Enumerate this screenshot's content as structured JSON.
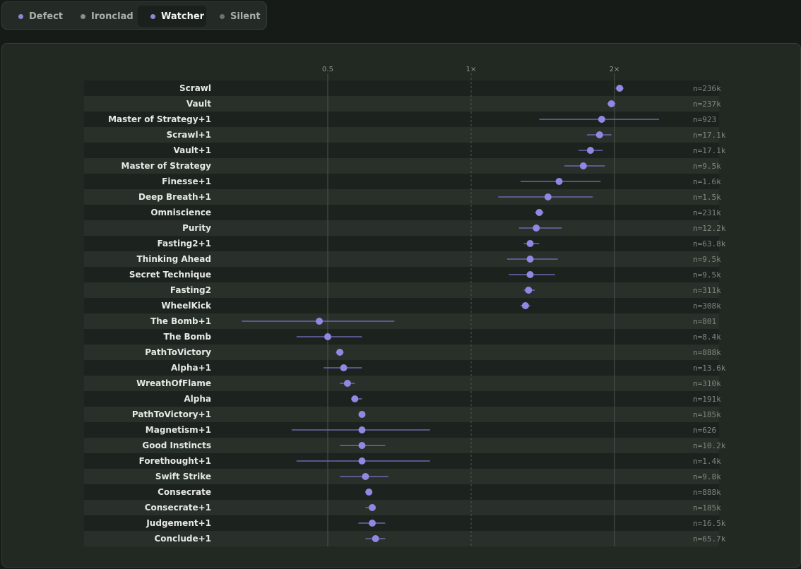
{
  "tabs": [
    {
      "label": "Defect",
      "color": "#8b86d6",
      "active": false
    },
    {
      "label": "Ironclad",
      "color": "#8a8f89",
      "active": false
    },
    {
      "label": "Watcher",
      "color": "#8b86d6",
      "active": true
    },
    {
      "label": "Silent",
      "color": "#6e736d",
      "active": false
    }
  ],
  "chart_data": {
    "type": "scatter",
    "x_scale": "log",
    "x_ticks": [
      {
        "value": 0.5,
        "label": "0.5"
      },
      {
        "value": 1,
        "label": "1×"
      },
      {
        "value": 2,
        "label": "2×"
      }
    ],
    "xlim": [
      0.25,
      3.7
    ],
    "point_color": "#9088e3",
    "rows": [
      {
        "name": "Scrawl",
        "value": 2.05,
        "low": 2.01,
        "high": 2.09,
        "n": "n=236k"
      },
      {
        "name": "Vault",
        "value": 1.97,
        "low": 1.93,
        "high": 2.01,
        "n": "n=237k"
      },
      {
        "name": "Master of Strategy+1",
        "value": 1.88,
        "low": 1.39,
        "high": 2.48,
        "n": "n=923"
      },
      {
        "name": "Scrawl+1",
        "value": 1.86,
        "low": 1.75,
        "high": 1.97,
        "n": "n=17.1k"
      },
      {
        "name": "Vault+1",
        "value": 1.78,
        "low": 1.68,
        "high": 1.89,
        "n": "n=17.1k"
      },
      {
        "name": "Master of Strategy",
        "value": 1.72,
        "low": 1.57,
        "high": 1.91,
        "n": "n=9.5k"
      },
      {
        "name": "Finesse+1",
        "value": 1.53,
        "low": 1.27,
        "high": 1.87,
        "n": "n=1.6k"
      },
      {
        "name": "Deep Breath+1",
        "value": 1.45,
        "low": 1.14,
        "high": 1.8,
        "n": "n=1.5k"
      },
      {
        "name": "Omniscience",
        "value": 1.39,
        "low": 1.36,
        "high": 1.42,
        "n": "n=231k"
      },
      {
        "name": "Purity",
        "value": 1.37,
        "low": 1.26,
        "high": 1.55,
        "n": "n=12.2k"
      },
      {
        "name": "Fasting2+1",
        "value": 1.33,
        "low": 1.29,
        "high": 1.39,
        "n": "n=63.8k"
      },
      {
        "name": "Thinking Ahead",
        "value": 1.33,
        "low": 1.19,
        "high": 1.52,
        "n": "n=9.5k"
      },
      {
        "name": "Secret Technique",
        "value": 1.33,
        "low": 1.2,
        "high": 1.5,
        "n": "n=9.5k"
      },
      {
        "name": "Fasting2",
        "value": 1.32,
        "low": 1.29,
        "high": 1.36,
        "n": "n=311k"
      },
      {
        "name": "WheelKick",
        "value": 1.3,
        "low": 1.27,
        "high": 1.33,
        "n": "n=308k"
      },
      {
        "name": "The Bomb+1",
        "value": 0.48,
        "low": 0.33,
        "high": 0.69,
        "n": "n=801"
      },
      {
        "name": "The Bomb",
        "value": 0.5,
        "low": 0.43,
        "high": 0.59,
        "n": "n=8.4k"
      },
      {
        "name": "PathToVictory",
        "value": 0.53,
        "low": 0.52,
        "high": 0.54,
        "n": "n=888k"
      },
      {
        "name": "Alpha+1",
        "value": 0.54,
        "low": 0.49,
        "high": 0.59,
        "n": "n=13.6k"
      },
      {
        "name": "WreathOfFlame",
        "value": 0.55,
        "low": 0.53,
        "high": 0.57,
        "n": "n=310k"
      },
      {
        "name": "Alpha",
        "value": 0.57,
        "low": 0.56,
        "high": 0.59,
        "n": "n=191k"
      },
      {
        "name": "PathToVictory+1",
        "value": 0.59,
        "low": 0.58,
        "high": 0.6,
        "n": "n=185k"
      },
      {
        "name": "Magnetism+1",
        "value": 0.59,
        "low": 0.42,
        "high": 0.82,
        "n": "n=626"
      },
      {
        "name": "Good Instincts",
        "value": 0.59,
        "low": 0.53,
        "high": 0.66,
        "n": "n=10.2k"
      },
      {
        "name": "Forethought+1",
        "value": 0.59,
        "low": 0.43,
        "high": 0.82,
        "n": "n=1.4k"
      },
      {
        "name": "Swift Strike",
        "value": 0.6,
        "low": 0.53,
        "high": 0.67,
        "n": "n=9.8k"
      },
      {
        "name": "Consecrate",
        "value": 0.61,
        "low": 0.6,
        "high": 0.62,
        "n": "n=888k"
      },
      {
        "name": "Consecrate+1",
        "value": 0.62,
        "low": 0.6,
        "high": 0.63,
        "n": "n=185k"
      },
      {
        "name": "Judgement+1",
        "value": 0.62,
        "low": 0.58,
        "high": 0.66,
        "n": "n=16.5k"
      },
      {
        "name": "Conclude+1",
        "value": 0.63,
        "low": 0.6,
        "high": 0.66,
        "n": "n=65.7k"
      }
    ]
  }
}
